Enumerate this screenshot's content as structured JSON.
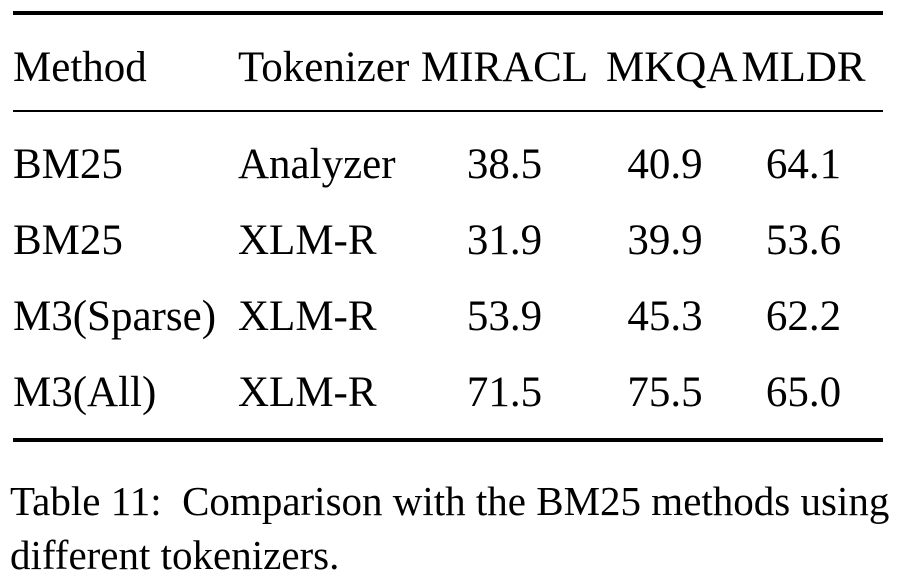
{
  "colors": {
    "background": "#ffffff",
    "text": "#000000",
    "rule": "#000000"
  },
  "table": {
    "columns": [
      {
        "label": "Method",
        "align": "left"
      },
      {
        "label": "Tokenizer",
        "align": "left"
      },
      {
        "label": "MIRACL",
        "align": "center"
      },
      {
        "label": "MKQA",
        "align": "center"
      },
      {
        "label": "MLDR",
        "align": "center"
      }
    ],
    "rows": [
      {
        "method": "BM25",
        "tokenizer": "Analyzer",
        "miracl": "38.5",
        "mkqa": "40.9",
        "mldr": "64.1"
      },
      {
        "method": "BM25",
        "tokenizer": "XLM-R",
        "miracl": "31.9",
        "mkqa": "39.9",
        "mldr": "53.6"
      },
      {
        "method": "M3(Sparse)",
        "tokenizer": "XLM-R",
        "miracl": "53.9",
        "mkqa": "45.3",
        "mldr": "62.2"
      },
      {
        "method": "M3(All)",
        "tokenizer": "XLM-R",
        "miracl": "71.5",
        "mkqa": "75.5",
        "mldr": "65.0"
      }
    ]
  },
  "caption": {
    "text": "Table 11:  Comparison with the BM25 methods using\ndifferent tokenizers."
  }
}
